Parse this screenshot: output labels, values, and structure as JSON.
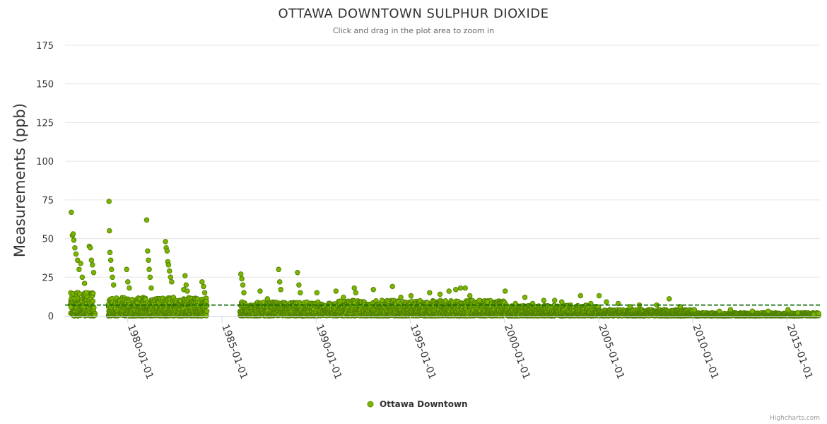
{
  "chart_data": {
    "type": "scatter",
    "title": "OTTAWA DOWNTOWN SULPHUR DIOXIDE",
    "subtitle": "Click and drag in the plot area to zoom in",
    "ylabel": "Measurements (ppb)",
    "xlabel": "",
    "ylim": [
      0,
      175
    ],
    "xlim": [
      "1976-09-01",
      "2016-10-01"
    ],
    "yticks": [
      0,
      25,
      50,
      75,
      100,
      125,
      150,
      175
    ],
    "xticks": [
      "1980-01-01",
      "1985-01-01",
      "1990-01-01",
      "1995-01-01",
      "2000-01-01",
      "2005-01-01",
      "2010-01-01",
      "2015-01-01"
    ],
    "grid": true,
    "legend": {
      "position": "bottom-center",
      "entries": [
        "Ottawa Downtown"
      ]
    },
    "reference_line": {
      "value": 7,
      "style": "dashed",
      "color": "#006400"
    },
    "series": [
      {
        "name": "Ottawa Downtown",
        "color": "#7cb500",
        "points": [
          {
            "x": "1977-01-01",
            "y": 67
          },
          {
            "x": "1977-01-20",
            "y": 52
          },
          {
            "x": "1977-02-05",
            "y": 53
          },
          {
            "x": "1977-02-20",
            "y": 49
          },
          {
            "x": "1977-03-10",
            "y": 44
          },
          {
            "x": "1977-04-01",
            "y": 40
          },
          {
            "x": "1977-05-01",
            "y": 36
          },
          {
            "x": "1977-06-01",
            "y": 30
          },
          {
            "x": "1977-07-01",
            "y": 34
          },
          {
            "x": "1977-08-01",
            "y": 25
          },
          {
            "x": "1977-09-15",
            "y": 21
          },
          {
            "x": "1977-10-20",
            "y": 15
          },
          {
            "x": "1977-12-15",
            "y": 45
          },
          {
            "x": "1978-01-05",
            "y": 44
          },
          {
            "x": "1978-01-25",
            "y": 36
          },
          {
            "x": "1978-02-15",
            "y": 33
          },
          {
            "x": "1978-03-10",
            "y": 28
          },
          {
            "x": "1979-01-01",
            "y": 74
          },
          {
            "x": "1979-01-10",
            "y": 55
          },
          {
            "x": "1979-01-20",
            "y": 41
          },
          {
            "x": "1979-02-05",
            "y": 36
          },
          {
            "x": "1979-02-20",
            "y": 30
          },
          {
            "x": "1979-03-10",
            "y": 25
          },
          {
            "x": "1979-04-01",
            "y": 20
          },
          {
            "x": "1979-12-10",
            "y": 30
          },
          {
            "x": "1980-01-01",
            "y": 22
          },
          {
            "x": "1980-02-01",
            "y": 18
          },
          {
            "x": "1981-01-01",
            "y": 62
          },
          {
            "x": "1981-01-20",
            "y": 42
          },
          {
            "x": "1981-02-05",
            "y": 36
          },
          {
            "x": "1981-02-20",
            "y": 30
          },
          {
            "x": "1981-03-10",
            "y": 25
          },
          {
            "x": "1981-04-01",
            "y": 18
          },
          {
            "x": "1982-01-01",
            "y": 48
          },
          {
            "x": "1982-01-15",
            "y": 44
          },
          {
            "x": "1982-02-01",
            "y": 42
          },
          {
            "x": "1982-02-15",
            "y": 35
          },
          {
            "x": "1982-03-01",
            "y": 33
          },
          {
            "x": "1982-03-20",
            "y": 29
          },
          {
            "x": "1982-04-10",
            "y": 25
          },
          {
            "x": "1982-05-01",
            "y": 22
          },
          {
            "x": "1982-12-20",
            "y": 17
          },
          {
            "x": "1983-01-15",
            "y": 26
          },
          {
            "x": "1983-02-05",
            "y": 20
          },
          {
            "x": "1983-03-01",
            "y": 16
          },
          {
            "x": "1983-12-10",
            "y": 22
          },
          {
            "x": "1984-01-10",
            "y": 19
          },
          {
            "x": "1984-02-01",
            "y": 15
          },
          {
            "x": "1986-01-01",
            "y": 27
          },
          {
            "x": "1986-01-20",
            "y": 24
          },
          {
            "x": "1986-02-10",
            "y": 20
          },
          {
            "x": "1986-03-01",
            "y": 15
          },
          {
            "x": "1987-01-10",
            "y": 16
          },
          {
            "x": "1987-06-01",
            "y": 11
          },
          {
            "x": "1988-01-05",
            "y": 30
          },
          {
            "x": "1988-01-25",
            "y": 22
          },
          {
            "x": "1988-02-15",
            "y": 17
          },
          {
            "x": "1989-01-05",
            "y": 28
          },
          {
            "x": "1989-02-01",
            "y": 20
          },
          {
            "x": "1989-03-01",
            "y": 15
          },
          {
            "x": "1990-01-15",
            "y": 15
          },
          {
            "x": "1991-01-20",
            "y": 16
          },
          {
            "x": "1991-06-15",
            "y": 12
          },
          {
            "x": "1992-01-10",
            "y": 18
          },
          {
            "x": "1992-02-10",
            "y": 15
          },
          {
            "x": "1993-01-15",
            "y": 17
          },
          {
            "x": "1993-07-01",
            "y": 10
          },
          {
            "x": "1994-01-20",
            "y": 19
          },
          {
            "x": "1994-07-01",
            "y": 12
          },
          {
            "x": "1995-01-15",
            "y": 13
          },
          {
            "x": "1996-01-10",
            "y": 15
          },
          {
            "x": "1996-08-01",
            "y": 14
          },
          {
            "x": "1997-01-20",
            "y": 16
          },
          {
            "x": "1997-06-01",
            "y": 17
          },
          {
            "x": "1997-09-01",
            "y": 18
          },
          {
            "x": "1997-12-01",
            "y": 18
          },
          {
            "x": "1998-03-01",
            "y": 13
          },
          {
            "x": "1998-09-01",
            "y": 10
          },
          {
            "x": "1999-02-01",
            "y": 9
          },
          {
            "x": "2000-01-15",
            "y": 16
          },
          {
            "x": "2000-08-01",
            "y": 8
          },
          {
            "x": "2001-02-01",
            "y": 12
          },
          {
            "x": "2001-07-01",
            "y": 8
          },
          {
            "x": "2002-02-01",
            "y": 10
          },
          {
            "x": "2002-09-01",
            "y": 10
          },
          {
            "x": "2003-01-15",
            "y": 9
          },
          {
            "x": "2004-01-15",
            "y": 13
          },
          {
            "x": "2004-08-01",
            "y": 8
          },
          {
            "x": "2005-01-10",
            "y": 13
          },
          {
            "x": "2005-06-01",
            "y": 9
          },
          {
            "x": "2006-01-15",
            "y": 8
          },
          {
            "x": "2006-09-01",
            "y": 6
          },
          {
            "x": "2007-03-01",
            "y": 7
          },
          {
            "x": "2008-02-01",
            "y": 7
          },
          {
            "x": "2008-10-01",
            "y": 11
          },
          {
            "x": "2009-05-01",
            "y": 6
          },
          {
            "x": "2010-02-01",
            "y": 4
          },
          {
            "x": "2011-06-01",
            "y": 3
          },
          {
            "x": "2012-01-01",
            "y": 4
          },
          {
            "x": "2013-03-01",
            "y": 3
          },
          {
            "x": "2014-01-01",
            "y": 3
          },
          {
            "x": "2015-01-20",
            "y": 4
          },
          {
            "x": "2015-08-01",
            "y": 2
          },
          {
            "x": "2016-06-01",
            "y": 1
          }
        ],
        "dense_bands": [
          {
            "start": "1976-12-15",
            "end": "1978-04-01",
            "typical_max": 15
          },
          {
            "start": "1978-12-20",
            "end": "1984-03-15",
            "typical_max": 12
          },
          {
            "start": "1985-12-15",
            "end": "1990-12-31",
            "typical_max": 9
          },
          {
            "start": "1991-01-01",
            "end": "1999-12-31",
            "typical_max": 10
          },
          {
            "start": "2000-01-01",
            "end": "2004-12-31",
            "typical_max": 7
          },
          {
            "start": "2005-01-01",
            "end": "2009-12-31",
            "typical_max": 4
          },
          {
            "start": "2010-01-01",
            "end": "2016-08-31",
            "typical_max": 2
          }
        ]
      }
    ]
  },
  "credits": "Highcharts.com"
}
